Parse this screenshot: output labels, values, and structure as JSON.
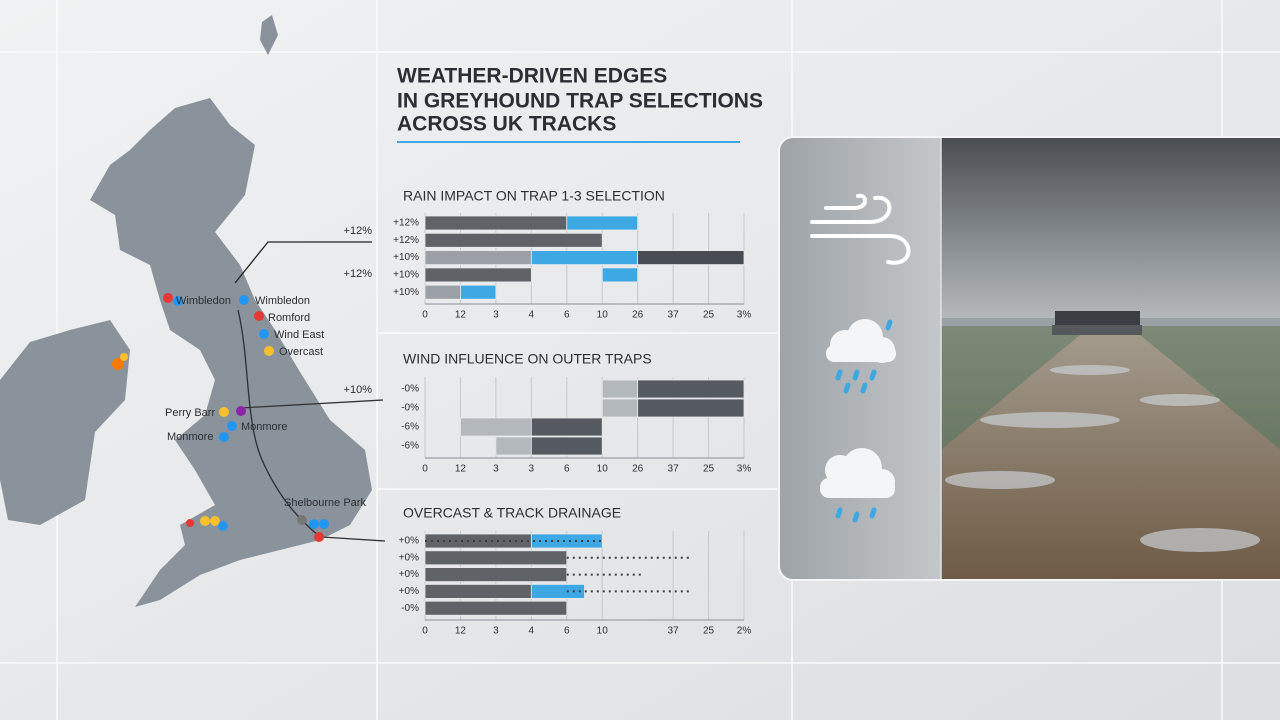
{
  "title": [
    "WEATHER-DRIVEN EDGES",
    "IN GREYHOUND TRAP SELECTIONS",
    "ACROSS UK TRACKS"
  ],
  "map": {
    "labels": [
      "Wimbledon",
      "Wimbledon",
      "Romford",
      "Wind East",
      "Overcast",
      "Perry Barr",
      "Monmore",
      "Monmore",
      "Shelbourne Park"
    ],
    "callouts": [
      "+12%",
      "+12%",
      "+10%"
    ]
  },
  "chart_data": [
    {
      "type": "bar",
      "title": "RAIN IMPACT ON TRAP 1-3 SELECTION",
      "categories": [
        "+12%",
        "+12%",
        "+10%",
        "+10%",
        "+10%"
      ],
      "xlim": [
        0,
        9
      ],
      "xticks": [
        0,
        {
          "value": 1,
          "label": "12"
        },
        {
          "value": 2,
          "label": "3"
        },
        {
          "value": 3,
          "label": "4"
        },
        {
          "value": 4,
          "label": "6"
        },
        {
          "value": 5,
          "label": "10"
        },
        {
          "value": 6,
          "label": "26"
        },
        {
          "value": 7,
          "label": "37"
        },
        {
          "value": 8,
          "label": "25"
        },
        {
          "value": 9,
          "label": "3%"
        }
      ],
      "series": [
        {
          "color": "#9aa0a6",
          "values": [
            null,
            null,
            [
              0,
              3
            ],
            null,
            [
              0,
              1
            ]
          ]
        },
        {
          "color": "#5f6368",
          "values": [
            [
              0,
              4
            ],
            [
              0,
              5
            ],
            null,
            [
              0,
              3
            ],
            null
          ]
        },
        {
          "color": "#3ea8e5",
          "values": [
            [
              4,
              6
            ],
            null,
            [
              3,
              6
            ],
            [
              5,
              6
            ],
            [
              1,
              2
            ]
          ]
        },
        {
          "color": "#474c53",
          "values": [
            null,
            null,
            [
              6,
              9
            ],
            null,
            null
          ]
        }
      ]
    },
    {
      "type": "bar",
      "title": "WIND INFLUENCE ON OUTER TRAPS",
      "categories": [
        "-0%",
        "-0%",
        "-6%",
        "-6%"
      ],
      "xlim": [
        0,
        9
      ],
      "xticks": [
        0,
        {
          "value": 1,
          "label": "12"
        },
        {
          "value": 2,
          "label": "3"
        },
        {
          "value": 3,
          "label": "3"
        },
        {
          "value": 4,
          "label": "6"
        },
        {
          "value": 5,
          "label": "10"
        },
        {
          "value": 6,
          "label": "26"
        },
        {
          "value": 7,
          "label": "37"
        },
        {
          "value": 8,
          "label": "25"
        },
        {
          "value": 9,
          "label": "3%"
        }
      ],
      "series": [
        {
          "color": "#b3b8bd",
          "values": [
            [
              5,
              6
            ],
            [
              5,
              6
            ],
            [
              1,
              3
            ],
            [
              2,
              3
            ]
          ]
        },
        {
          "color": "#555a61",
          "values": [
            [
              6,
              9
            ],
            [
              6,
              9
            ],
            [
              3,
              5
            ],
            [
              3,
              5
            ]
          ]
        }
      ]
    },
    {
      "type": "bar",
      "title": "OVERCAST & TRACK DRAINAGE",
      "categories": [
        "+0%",
        "+0%",
        "+0%",
        "+0%",
        "-0%"
      ],
      "xlim": [
        0,
        9
      ],
      "xticks": [
        0,
        {
          "value": 1,
          "label": "12"
        },
        {
          "value": 2,
          "label": "3"
        },
        {
          "value": 3,
          "label": "4"
        },
        {
          "value": 4,
          "label": "6"
        },
        {
          "value": 5,
          "label": "10"
        },
        {
          "value": 7,
          "label": "37"
        },
        {
          "value": 8,
          "label": "25"
        },
        {
          "value": 9,
          "label": "2%"
        }
      ],
      "series": [
        {
          "color": "#5f6368",
          "values": [
            [
              0,
              3
            ],
            [
              0,
              4
            ],
            [
              0,
              4
            ],
            [
              0,
              3
            ],
            [
              0,
              4
            ]
          ]
        },
        {
          "color": "#3ea8e5",
          "values": [
            [
              3,
              5
            ],
            null,
            null,
            [
              3,
              4.5
            ],
            null
          ]
        },
        {
          "color": "#3c4043",
          "dash": true,
          "values": [
            [
              0,
              5
            ],
            [
              4,
              7.5
            ],
            [
              4,
              6.2
            ],
            [
              4,
              7.5
            ],
            null
          ]
        }
      ]
    }
  ]
}
